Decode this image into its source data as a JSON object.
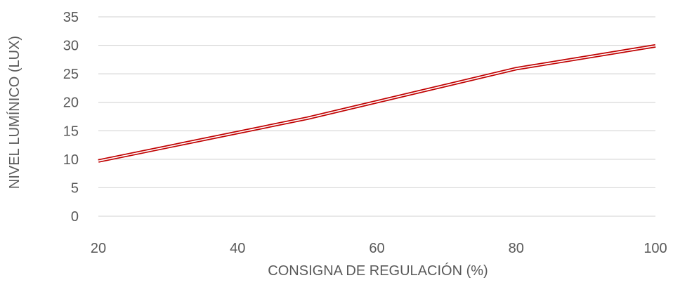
{
  "chart_data": {
    "type": "line",
    "title": "",
    "xlabel": "CONSIGNA DE REGULACIÓN (%)",
    "ylabel": "NIVEL LUMÍNICO (LUX)",
    "x": [
      20,
      50,
      80,
      100
    ],
    "series": [
      {
        "values": [
          9.7,
          17.2,
          25.9,
          29.9
        ]
      }
    ],
    "xlim": [
      20,
      100
    ],
    "ylim": [
      0,
      35
    ],
    "xticks": [
      "20",
      "40",
      "60",
      "80",
      "100"
    ],
    "yticks": [
      "0",
      "5",
      "10",
      "15",
      "20",
      "25",
      "30",
      "35"
    ],
    "grid": "horizontal",
    "legend": "none",
    "colors": {
      "line": "#c00000",
      "grid": "#d9d9d9",
      "text": "#595959"
    }
  }
}
